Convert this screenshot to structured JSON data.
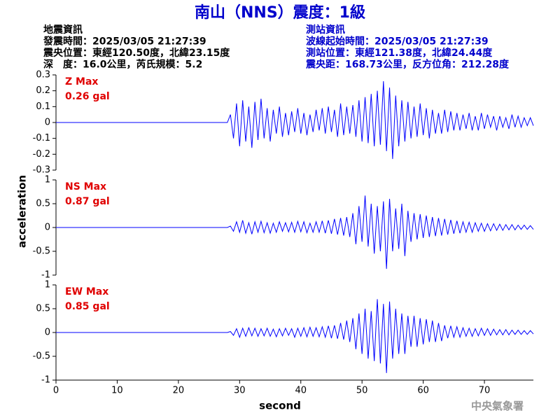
{
  "header": {
    "title": "南山（NNS）震度：1級",
    "left_lines": [
      "地震資訊",
      "發震時間：2025/03/05 21:27:39",
      "震央位置：東經120.50度，北緯23.15度",
      "深　度：16.0公里，芮氏規模：5.2"
    ],
    "right_lines": [
      "測站資訊",
      "波線起始時間：2025/03/05 21:27:39",
      "測站位置：東經121.38度，北緯24.44度",
      "震央距：168.73公里，反方位角：212.28度"
    ]
  },
  "footer": "中央氣象署",
  "chart_data": {
    "type": "line",
    "x_label": "second",
    "y_label": "acceleration",
    "xlim": [
      0,
      78
    ],
    "xticks": [
      0,
      10,
      20,
      30,
      40,
      50,
      60,
      70
    ],
    "x": [
      0,
      5,
      10,
      15,
      20,
      25,
      28,
      28.5,
      29,
      29.5,
      30,
      30.5,
      31,
      31.5,
      32,
      32.5,
      33,
      33.5,
      34,
      34.5,
      35,
      35.5,
      36,
      36.5,
      37,
      37.5,
      38,
      38.5,
      39,
      39.5,
      40,
      40.5,
      41,
      41.5,
      42,
      42.5,
      43,
      43.5,
      44,
      44.5,
      45,
      45.5,
      46,
      46.5,
      47,
      47.5,
      48,
      48.5,
      49,
      49.5,
      50,
      50.5,
      51,
      51.5,
      52,
      52.5,
      53,
      53.5,
      54,
      54.5,
      55,
      55.5,
      56,
      56.5,
      57,
      57.5,
      58,
      58.5,
      59,
      59.5,
      60,
      60.5,
      61,
      61.5,
      62,
      62.5,
      63,
      63.5,
      64,
      64.5,
      65,
      65.5,
      66,
      66.5,
      67,
      67.5,
      68,
      68.5,
      69,
      69.5,
      70,
      70.5,
      71,
      71.5,
      72,
      72.5,
      73,
      73.5,
      74,
      74.5,
      75,
      75.5,
      76,
      76.5,
      77,
      77.5,
      78
    ],
    "series": [
      {
        "name": "Z Max",
        "max_label": "0.26 gal",
        "color": "#0000ff",
        "ylim": [
          -0.3,
          0.3
        ],
        "yticks": [
          0.3,
          0.2,
          0.1,
          0,
          -0.1,
          -0.2,
          -0.3
        ],
        "values": [
          0,
          0,
          0,
          0,
          0,
          0,
          0,
          0.05,
          -0.1,
          0.12,
          -0.15,
          0.14,
          -0.12,
          0.1,
          -0.16,
          0.13,
          -0.11,
          0.15,
          -0.1,
          0.09,
          -0.12,
          0.08,
          -0.07,
          0.1,
          -0.09,
          0.06,
          -0.08,
          0.07,
          -0.06,
          0.09,
          -0.07,
          0.06,
          -0.08,
          0.05,
          -0.06,
          0.08,
          -0.05,
          0.09,
          -0.07,
          0.1,
          -0.06,
          0.08,
          -0.09,
          0.12,
          -0.08,
          0.1,
          -0.07,
          0.11,
          -0.09,
          0.14,
          -0.12,
          0.16,
          -0.13,
          0.18,
          -0.15,
          0.2,
          -0.14,
          0.26,
          -0.18,
          0.22,
          -0.23,
          0.17,
          -0.15,
          0.14,
          -0.12,
          0.13,
          -0.1,
          0.1,
          -0.09,
          0.12,
          -0.08,
          0.09,
          -0.1,
          0.08,
          -0.07,
          0.06,
          -0.07,
          0.08,
          -0.06,
          0.07,
          -0.05,
          0.06,
          -0.05,
          0.05,
          -0.04,
          0.06,
          -0.05,
          0.04,
          -0.05,
          0.06,
          -0.04,
          0.05,
          -0.03,
          0.04,
          -0.05,
          0.04,
          -0.03,
          0.03,
          -0.04,
          0.05,
          -0.03,
          0.04,
          -0.03,
          0.03,
          -0.02,
          0.03,
          -0.02
        ]
      },
      {
        "name": "NS Max",
        "max_label": "0.87 gal",
        "color": "#0000ff",
        "ylim": [
          -1,
          1
        ],
        "yticks": [
          1,
          0.5,
          0,
          -0.5,
          -1
        ],
        "values": [
          0,
          0,
          0,
          0,
          0,
          0,
          0,
          0.03,
          -0.08,
          0.12,
          -0.1,
          0.15,
          -0.12,
          0.1,
          -0.14,
          0.12,
          -0.1,
          0.13,
          -0.11,
          0.1,
          -0.12,
          0.09,
          -0.1,
          0.12,
          -0.08,
          0.1,
          -0.09,
          0.11,
          -0.1,
          0.13,
          -0.09,
          0.12,
          -0.11,
          0.09,
          -0.1,
          0.12,
          -0.1,
          0.14,
          -0.12,
          0.15,
          -0.13,
          0.18,
          -0.15,
          0.2,
          -0.17,
          0.22,
          -0.2,
          0.3,
          -0.35,
          0.45,
          -0.3,
          0.67,
          -0.4,
          0.5,
          -0.55,
          0.45,
          -0.5,
          0.55,
          -0.87,
          0.6,
          -0.5,
          0.4,
          -0.45,
          0.5,
          -0.6,
          0.35,
          -0.3,
          0.3,
          -0.25,
          0.28,
          -0.22,
          0.25,
          -0.2,
          0.22,
          -0.18,
          0.2,
          -0.17,
          0.18,
          -0.15,
          0.16,
          -0.13,
          0.14,
          -0.12,
          0.12,
          -0.1,
          0.11,
          -0.1,
          0.1,
          -0.08,
          0.09,
          -0.08,
          0.08,
          -0.07,
          0.08,
          -0.06,
          0.07,
          -0.06,
          0.06,
          -0.05,
          0.06,
          -0.05,
          0.05,
          -0.04,
          0.05,
          -0.04,
          0.04,
          -0.04
        ]
      },
      {
        "name": "EW Max",
        "max_label": "0.85 gal",
        "color": "#0000ff",
        "ylim": [
          -1,
          1
        ],
        "yticks": [
          1,
          0.5,
          0,
          -0.5,
          -1
        ],
        "values": [
          0,
          0,
          0,
          0,
          0,
          0,
          0,
          0.02,
          -0.06,
          0.08,
          -0.1,
          0.09,
          -0.08,
          0.1,
          -0.07,
          0.09,
          -0.08,
          0.08,
          -0.07,
          0.09,
          -0.08,
          0.07,
          -0.09,
          0.08,
          -0.07,
          0.09,
          -0.06,
          0.08,
          -0.1,
          0.09,
          -0.08,
          0.1,
          -0.09,
          0.11,
          -0.08,
          0.1,
          -0.09,
          0.12,
          -0.1,
          0.14,
          -0.12,
          0.15,
          -0.13,
          0.2,
          -0.15,
          0.25,
          -0.2,
          0.3,
          -0.35,
          0.4,
          -0.45,
          0.5,
          -0.55,
          0.45,
          -0.6,
          0.7,
          -0.65,
          0.6,
          -0.85,
          0.65,
          -0.55,
          0.5,
          -0.45,
          0.4,
          -0.45,
          0.35,
          -0.3,
          0.35,
          -0.3,
          0.3,
          -0.25,
          0.28,
          -0.2,
          0.25,
          -0.2,
          0.2,
          -0.18,
          0.15,
          -0.12,
          0.14,
          -0.1,
          0.12,
          -0.1,
          0.1,
          -0.08,
          0.09,
          -0.08,
          0.08,
          -0.07,
          0.09,
          -0.06,
          0.08,
          -0.06,
          0.07,
          -0.05,
          0.06,
          -0.05,
          0.06,
          -0.05,
          0.05,
          -0.04,
          0.05,
          -0.04,
          0.04,
          -0.04,
          0.04,
          -0.03
        ]
      }
    ]
  }
}
